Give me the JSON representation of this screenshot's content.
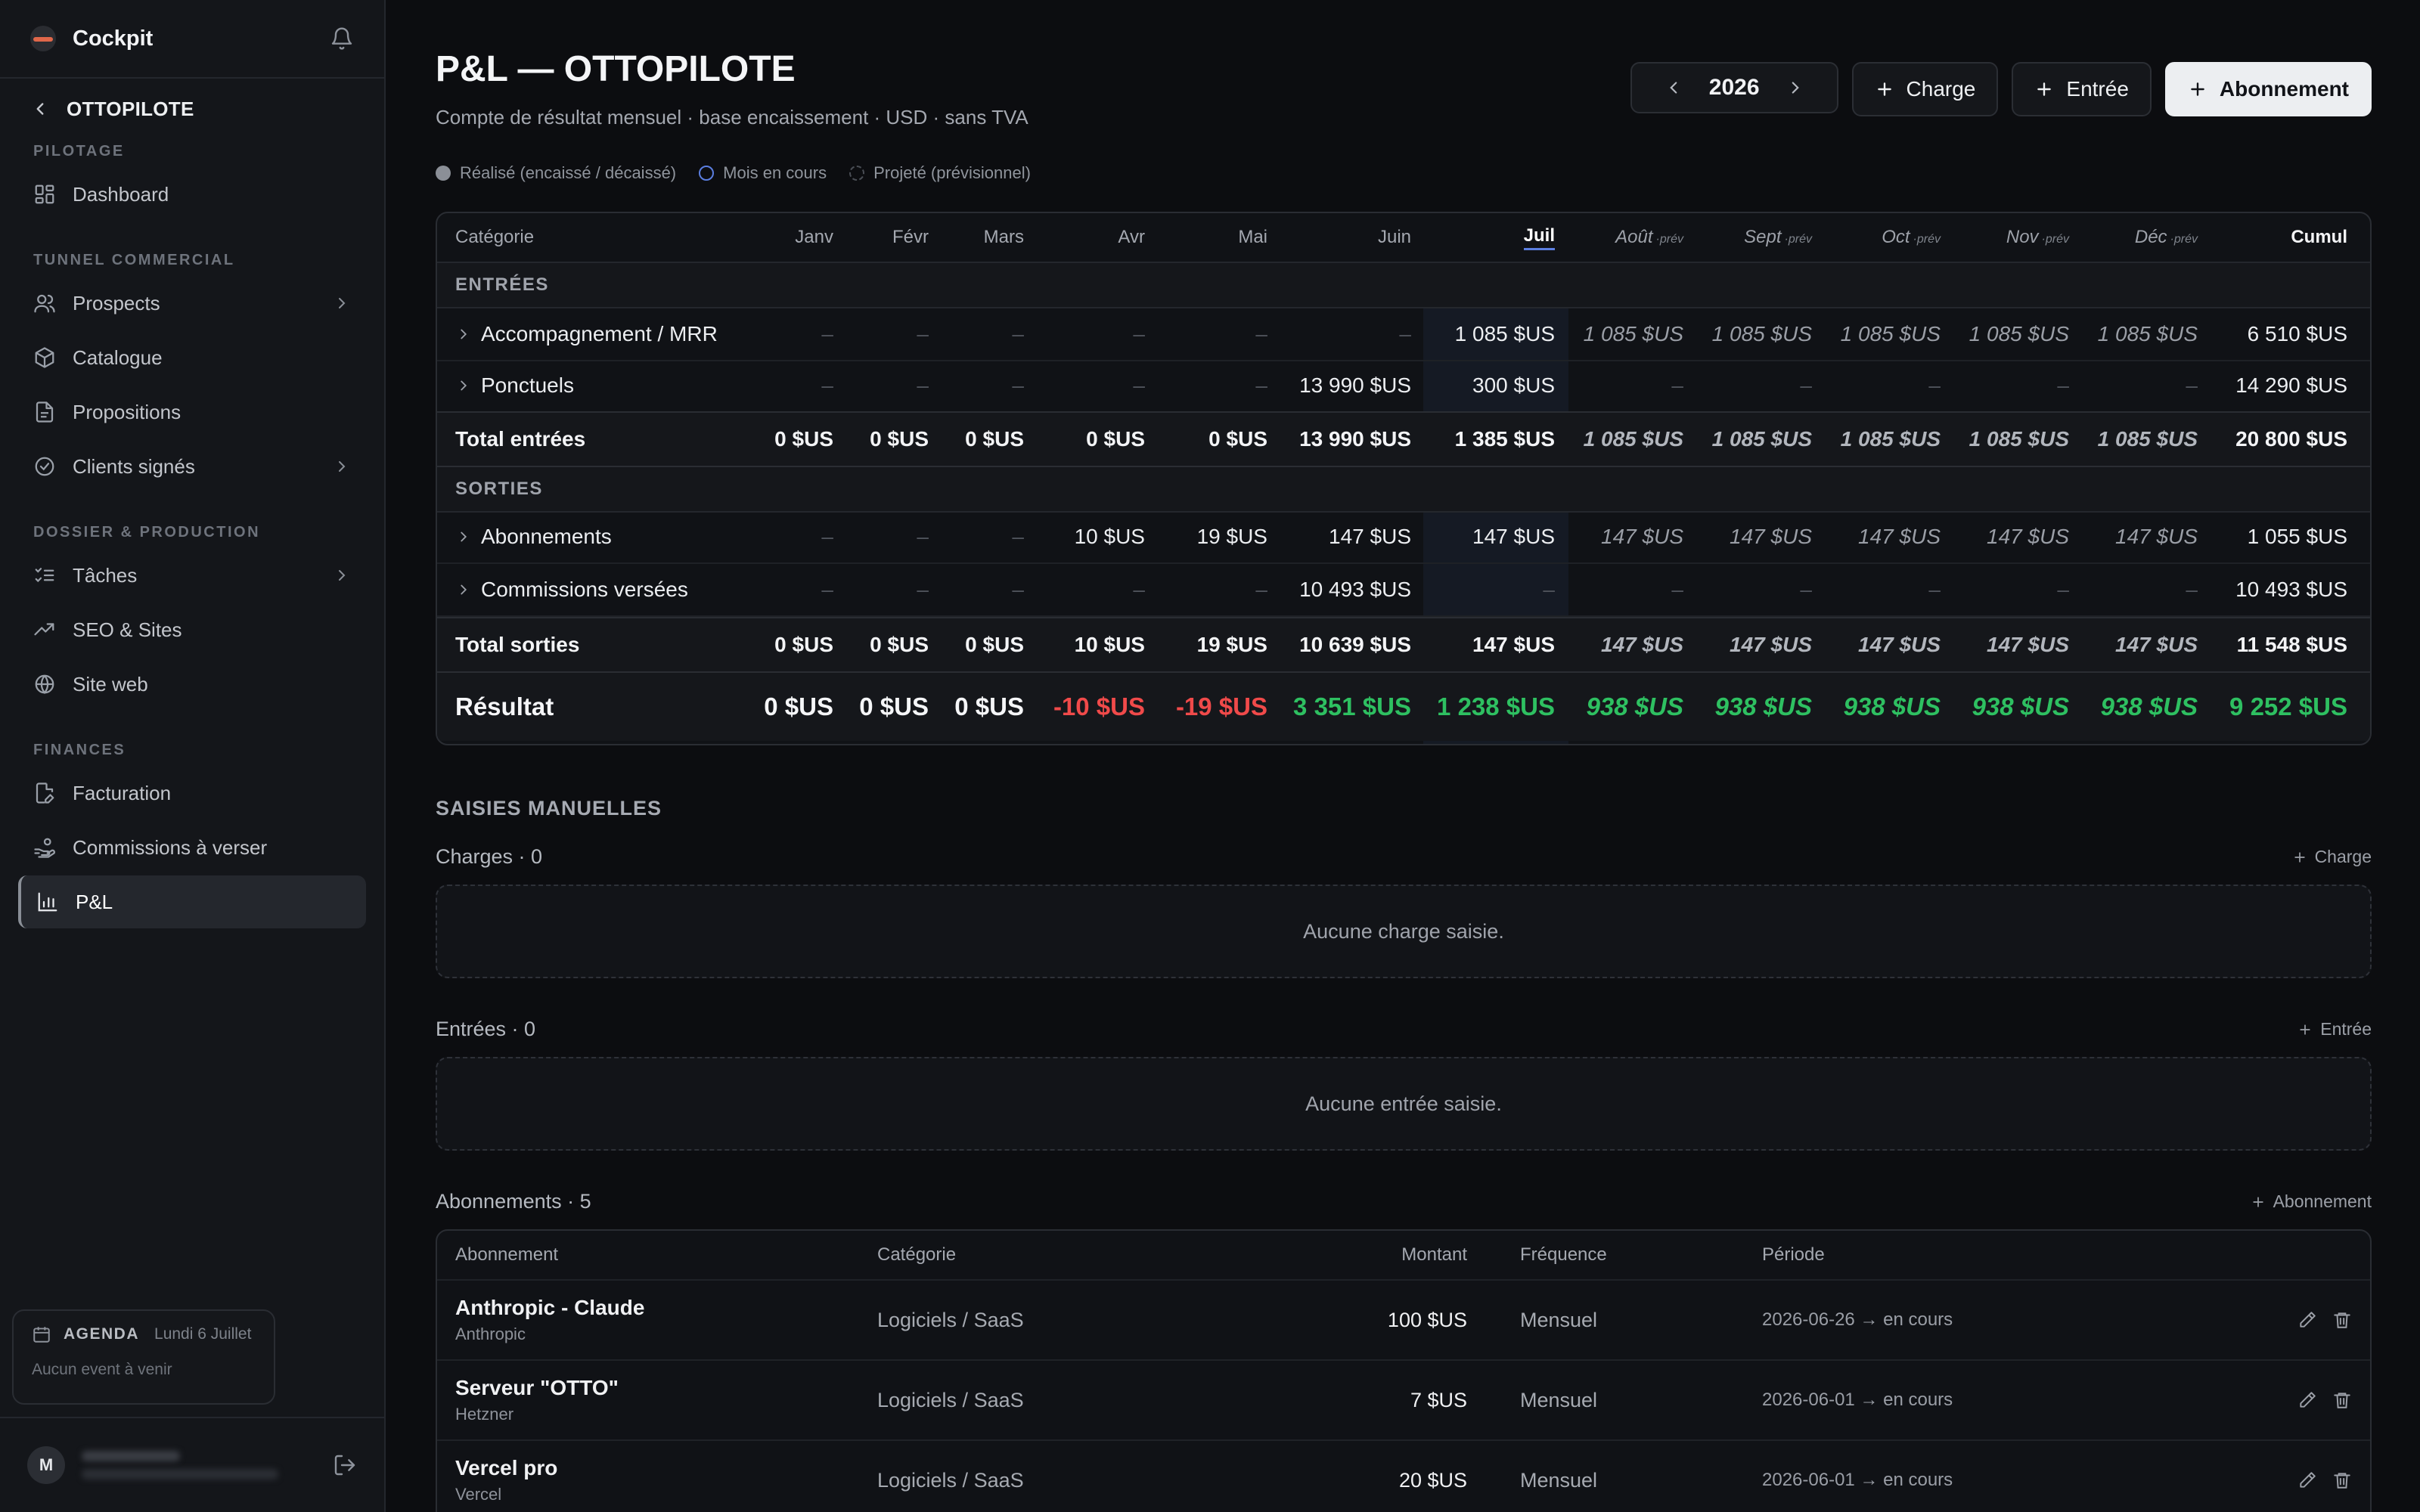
{
  "sidebar": {
    "brand": "Cockpit",
    "back_label": "OTTOPILOTE",
    "sections": {
      "pilotage": "PILOTAGE",
      "tunnel": "TUNNEL COMMERCIAL",
      "dossier": "DOSSIER & PRODUCTION",
      "finances": "FINANCES"
    },
    "items": {
      "dashboard": "Dashboard",
      "prospects": "Prospects",
      "catalogue": "Catalogue",
      "propositions": "Propositions",
      "clients": "Clients signés",
      "taches": "Tâches",
      "seo": "SEO & Sites",
      "site": "Site web",
      "facturation": "Facturation",
      "commissions": "Commissions à verser",
      "pl": "P&L"
    },
    "agenda": {
      "title": "AGENDA",
      "date": "Lundi 6 Juillet",
      "empty": "Aucun event à venir"
    },
    "user_initial": "M"
  },
  "header": {
    "title": "P&L — OTTOPILOTE",
    "subtitle": "Compte de résultat mensuel · base encaissement · USD · sans TVA",
    "year": "2026",
    "btn_charge": "Charge",
    "btn_entree": "Entrée",
    "btn_abonnement": "Abonnement"
  },
  "legend": {
    "realise": "Réalisé (encaissé / décaissé)",
    "encours": "Mois en cours",
    "projete": "Projeté (prévisionnel)"
  },
  "pl": {
    "cat_header": "Catégorie",
    "months": [
      "Janv",
      "Févr",
      "Mars",
      "Avr",
      "Mai",
      "Juin",
      "Juil",
      "Août",
      "Sept",
      "Oct",
      "Nov",
      "Déc"
    ],
    "prev_suffix": "·prév",
    "cumul_header": "Cumul",
    "section_in": "ENTRÉES",
    "section_out": "SORTIES",
    "rows": {
      "mrr": {
        "label": "Accompagnement / MRR",
        "values": [
          "–",
          "–",
          "–",
          "–",
          "–",
          "–",
          "1 085 $US",
          "1 085 $US",
          "1 085 $US",
          "1 085 $US",
          "1 085 $US",
          "1 085 $US"
        ],
        "cumul": "6 510 $US"
      },
      "ponctuels": {
        "label": "Ponctuels",
        "values": [
          "–",
          "–",
          "–",
          "–",
          "–",
          "13 990 $US",
          "300 $US",
          "–",
          "–",
          "–",
          "–",
          "–"
        ],
        "cumul": "14 290 $US"
      },
      "total_in": {
        "label": "Total entrées",
        "values": [
          "0 $US",
          "0 $US",
          "0 $US",
          "0 $US",
          "0 $US",
          "13 990 $US",
          "1 385 $US",
          "1 085 $US",
          "1 085 $US",
          "1 085 $US",
          "1 085 $US",
          "1 085 $US"
        ],
        "cumul": "20 800 $US"
      },
      "abonnements": {
        "label": "Abonnements",
        "values": [
          "–",
          "–",
          "–",
          "10 $US",
          "19 $US",
          "147 $US",
          "147 $US",
          "147 $US",
          "147 $US",
          "147 $US",
          "147 $US",
          "147 $US"
        ],
        "cumul": "1 055 $US"
      },
      "commissions": {
        "label": "Commissions versées",
        "values": [
          "–",
          "–",
          "–",
          "–",
          "–",
          "10 493 $US",
          "–",
          "–",
          "–",
          "–",
          "–",
          "–"
        ],
        "cumul": "10 493 $US"
      },
      "total_out": {
        "label": "Total sorties",
        "values": [
          "0 $US",
          "0 $US",
          "0 $US",
          "10 $US",
          "19 $US",
          "10 639 $US",
          "147 $US",
          "147 $US",
          "147 $US",
          "147 $US",
          "147 $US",
          "147 $US"
        ],
        "cumul": "11 548 $US"
      },
      "resultat": {
        "label": "Résultat",
        "values": [
          "0 $US",
          "0 $US",
          "0 $US",
          "-10 $US",
          "-19 $US",
          "3 351 $US",
          "1 238 $US",
          "938 $US",
          "938 $US",
          "938 $US",
          "938 $US",
          "938 $US"
        ],
        "cumul": "9 252 $US"
      }
    }
  },
  "manual": {
    "title": "SAISIES MANUELLES",
    "charges_title": "Charges · 0",
    "charges_add": "Charge",
    "charges_empty": "Aucune charge saisie.",
    "entrees_title": "Entrées · 0",
    "entrees_add": "Entrée",
    "entrees_empty": "Aucune entrée saisie.",
    "abos_title": "Abonnements · 5",
    "abos_add": "Abonnement",
    "abos_headers": {
      "name": "Abonnement",
      "cat": "Catégorie",
      "amount": "Montant",
      "freq": "Fréquence",
      "period": "Période"
    },
    "abos": [
      {
        "name": "Anthropic - Claude",
        "vendor": "Anthropic",
        "cat": "Logiciels / SaaS",
        "amount": "100 $US",
        "freq": "Mensuel",
        "period": "2026-06-26 → en cours"
      },
      {
        "name": "Serveur \"OTTO\"",
        "vendor": "Hetzner",
        "cat": "Logiciels / SaaS",
        "amount": "7 $US",
        "freq": "Mensuel",
        "period": "2026-06-01 → en cours"
      },
      {
        "name": "Vercel pro",
        "vendor": "Vercel",
        "cat": "Logiciels / SaaS",
        "amount": "20 $US",
        "freq": "Mensuel",
        "period": "2026-06-01 → en cours"
      }
    ]
  }
}
